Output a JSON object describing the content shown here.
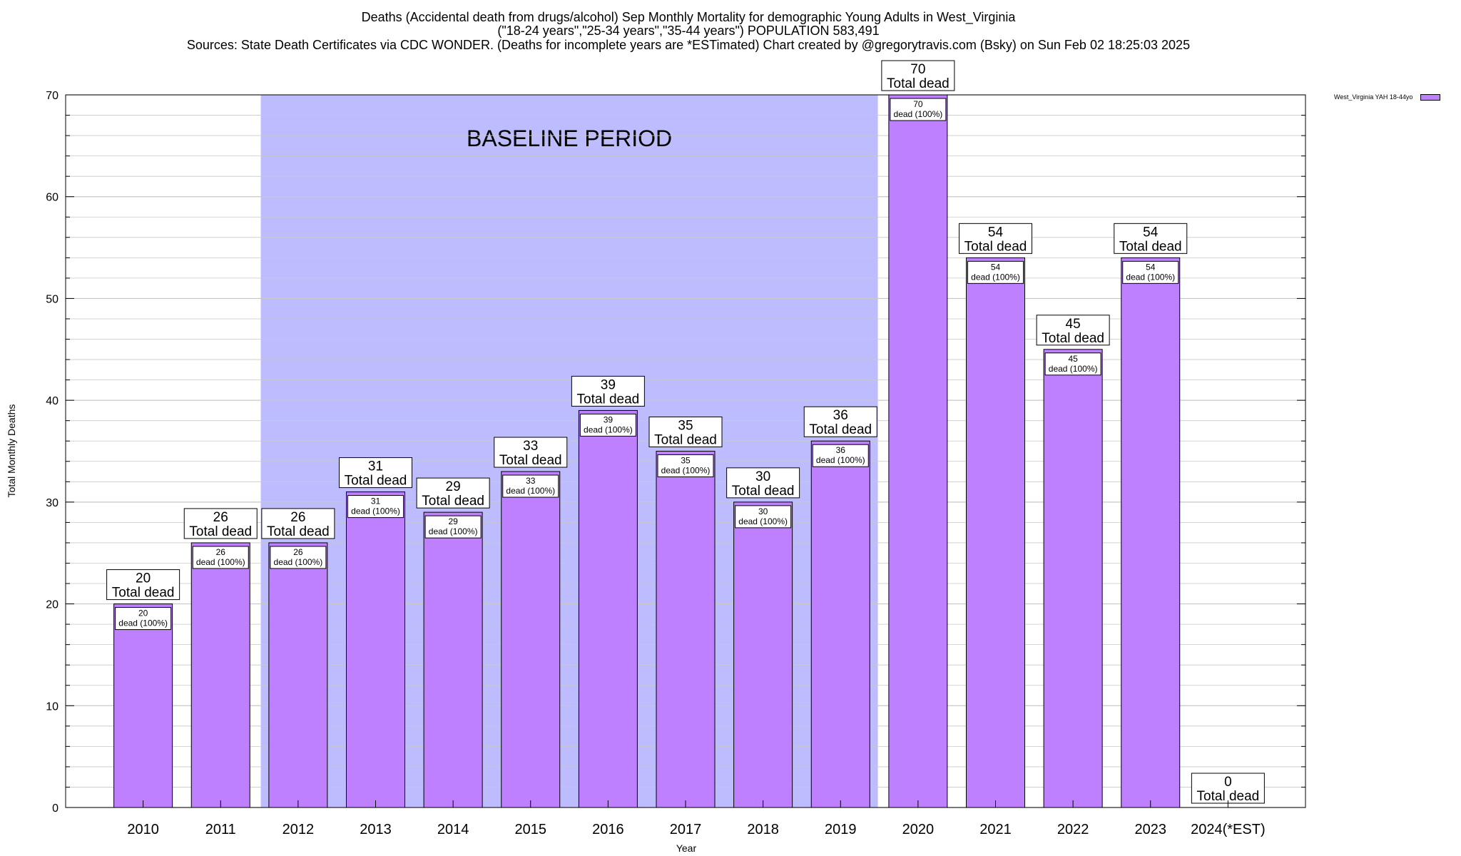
{
  "header": {
    "title_line1": "Deaths (Accidental death from drugs/alcohol) Sep Monthly Mortality for demographic Young Adults in West_Virginia",
    "title_line2": "(\"18-24 years\",\"25-34 years\",\"35-44 years\") POPULATION 583,491",
    "title_line3": "Sources: State Death Certificates via CDC WONDER. (Deaths for incomplete years are *ESTimated)                Chart created by @gregorytravis.com (Bsky) on Sun Feb 02 18:25:03 2025"
  },
  "legend": {
    "label": "West_Virginia YAH 18-44yo"
  },
  "colors": {
    "bar": "#bf80ff",
    "baseline": "#bcbcff",
    "grid": "#c8c8c8"
  },
  "chart_data": {
    "type": "bar",
    "title": "Deaths (Accidental death from drugs/alcohol) Sep Monthly Mortality for demographic Young Adults in West_Virginia",
    "xlabel": "Year",
    "ylabel": "Total Monthly Deaths",
    "ylim": [
      0,
      70
    ],
    "yticks": [
      0,
      10,
      20,
      30,
      40,
      50,
      60,
      70
    ],
    "grid": true,
    "categories": [
      "2010",
      "2011",
      "2012",
      "2013",
      "2014",
      "2015",
      "2016",
      "2017",
      "2018",
      "2019",
      "2020",
      "2021",
      "2022",
      "2023",
      "2024(*EST)"
    ],
    "values": [
      20,
      26,
      26,
      31,
      29,
      33,
      39,
      35,
      30,
      36,
      70,
      54,
      45,
      54,
      0
    ],
    "total_label": "Total dead",
    "inner_label": "dead (100%)",
    "series": [
      {
        "name": "West_Virginia YAH 18-44yo",
        "values": [
          20,
          26,
          26,
          31,
          29,
          33,
          39,
          35,
          30,
          36,
          70,
          54,
          45,
          54,
          0
        ]
      }
    ],
    "shaded_region": {
      "label": "BASELINE PERIOD",
      "start": "2012",
      "end": "2019"
    }
  }
}
